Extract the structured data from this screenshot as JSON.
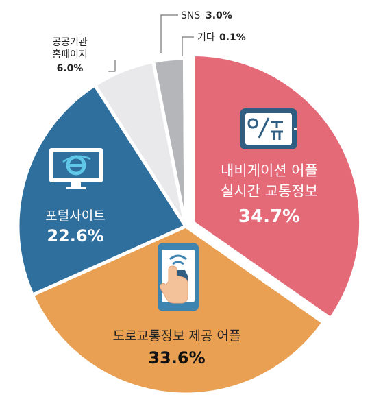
{
  "chart_data": {
    "type": "pie",
    "slices": [
      {
        "label_lines": [
          "내비게이션 어플",
          "실시간 교통정보"
        ],
        "value": 34.7,
        "value_label": "34.7%",
        "color": "#e46a78",
        "icon": "navigation-tablet-icon"
      },
      {
        "label_lines": [
          "도로교통정보 제공 어플"
        ],
        "value": 33.6,
        "value_label": "33.6%",
        "color": "#e9a052",
        "icon": "phone-car-touch-icon"
      },
      {
        "label_lines": [
          "포털사이트"
        ],
        "value": 22.6,
        "value_label": "22.6%",
        "color": "#2e6f9e",
        "icon": "browser-monitor-icon"
      },
      {
        "label_lines": [
          "공공기관",
          "홈페이지"
        ],
        "value": 6.0,
        "value_label": "6.0%",
        "color": "#e9e9eb",
        "icon": ""
      },
      {
        "label_lines": [
          "SNS"
        ],
        "value": 3.0,
        "value_label": "3.0%",
        "color": "#b5b6b9",
        "icon": ""
      },
      {
        "label_lines": [
          "기타"
        ],
        "value": 0.1,
        "value_label": "0.1%",
        "color": "#2b2b2b",
        "icon": ""
      }
    ]
  }
}
